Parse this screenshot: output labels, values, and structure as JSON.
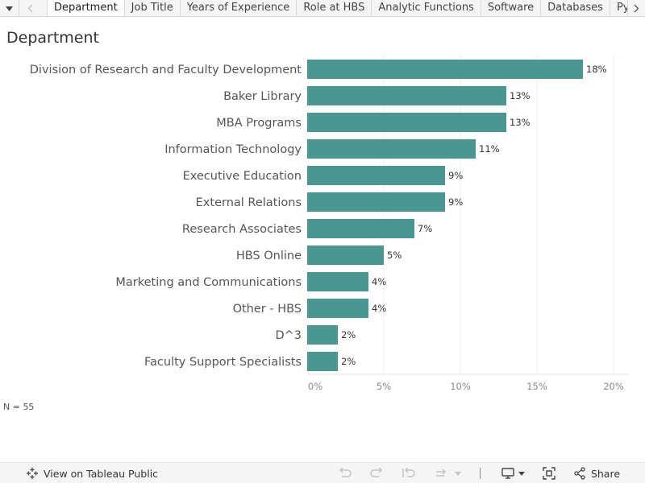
{
  "tabs": [
    {
      "label": "Department",
      "active": true
    },
    {
      "label": "Job Title",
      "active": false
    },
    {
      "label": "Years of Experience",
      "active": false
    },
    {
      "label": "Role at HBS",
      "active": false
    },
    {
      "label": "Analytic Functions",
      "active": false
    },
    {
      "label": "Software",
      "active": false
    },
    {
      "label": "Databases",
      "active": false
    },
    {
      "label": "Pytho",
      "active": false
    }
  ],
  "page": {
    "title": "Department",
    "note": "N = 55"
  },
  "chart_data": {
    "type": "bar",
    "orientation": "horizontal",
    "categories": [
      "Division of Research and Faculty Development",
      "Baker Library",
      "MBA Programs",
      "Information Technology",
      "Executive Education",
      "External Relations",
      "Research Associates",
      "HBS Online",
      "Marketing and Communications",
      "Other - HBS",
      "D^3",
      "Faculty Support Specialists"
    ],
    "values": [
      18,
      13,
      13,
      11,
      9,
      9,
      7,
      5,
      4,
      4,
      2,
      2
    ],
    "value_labels": [
      "18%",
      "13%",
      "13%",
      "11%",
      "9%",
      "9%",
      "7%",
      "5%",
      "4%",
      "4%",
      "2%",
      "2%"
    ],
    "title": "Department",
    "xlabel": "",
    "ylabel": "",
    "xlim": [
      0,
      21
    ],
    "ticks": [
      0,
      5,
      10,
      15,
      20
    ],
    "tick_labels": [
      "0%",
      "5%",
      "10%",
      "15%",
      "20%"
    ],
    "grid": true,
    "bar_color": "#4a9690"
  },
  "footer": {
    "view_label": "View on Tableau Public",
    "share_label": "Share"
  },
  "colors": {
    "bar": "#4a9690",
    "grid": "#ececec"
  }
}
